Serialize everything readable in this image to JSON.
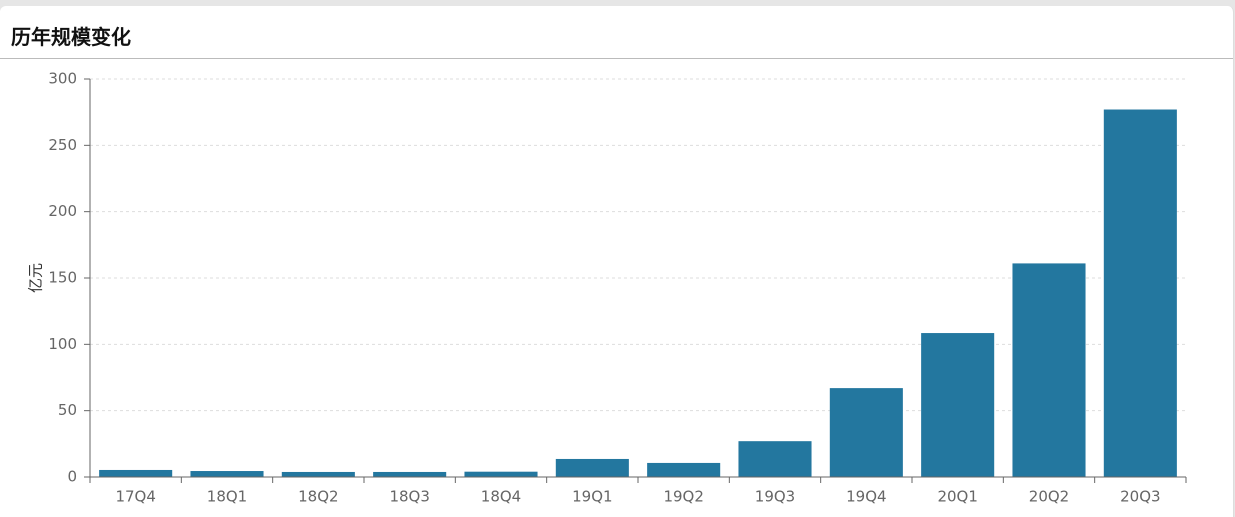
{
  "chart_data": {
    "type": "bar",
    "title": "历年规模变化",
    "y_label": "亿元",
    "categories": [
      "17Q4",
      "18Q1",
      "18Q2",
      "18Q3",
      "18Q4",
      "19Q1",
      "19Q2",
      "19Q3",
      "19Q4",
      "20Q1",
      "20Q2",
      "20Q3"
    ],
    "values": [
      5.3,
      4.5,
      3.8,
      3.8,
      4,
      13.6,
      10.6,
      27,
      67,
      108.5,
      161,
      277
    ],
    "color": "#23779f",
    "ylim": [
      0,
      300
    ],
    "yticks": [
      0,
      50,
      100,
      150,
      200,
      250,
      300
    ],
    "grid": true
  }
}
